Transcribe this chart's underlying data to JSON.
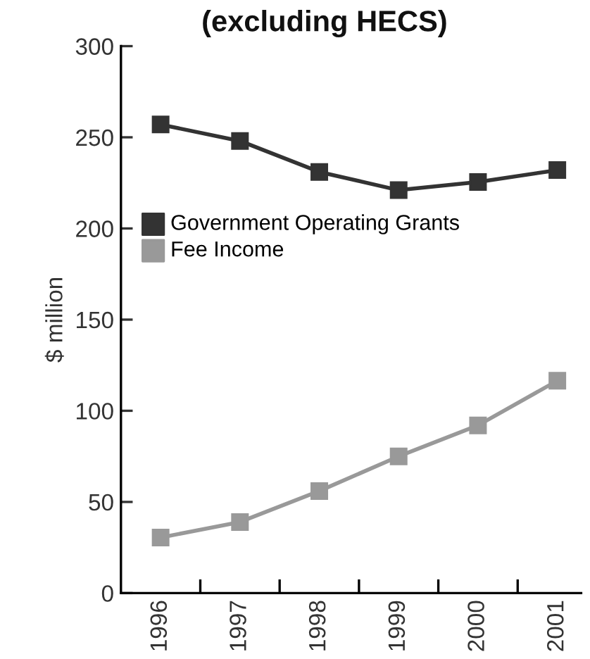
{
  "chart_data": {
    "type": "line",
    "title": "(excluding HECS)",
    "ylabel": "$ million",
    "categories": [
      "1996",
      "1997",
      "1998",
      "1999",
      "2000",
      "2001"
    ],
    "series": [
      {
        "name": "Government Operating Grants",
        "color": "#333333",
        "values": [
          257,
          248,
          231,
          221,
          225.5,
          232
        ]
      },
      {
        "name": "Fee Income",
        "color": "#999999",
        "values": [
          30.5,
          39,
          56,
          75,
          92,
          116.5
        ]
      }
    ],
    "ylim": [
      0,
      300
    ],
    "yticks": [
      0,
      50,
      100,
      150,
      200,
      250,
      300
    ],
    "marker": "square",
    "line_style": "solid",
    "legend": "center left",
    "grid": false
  }
}
